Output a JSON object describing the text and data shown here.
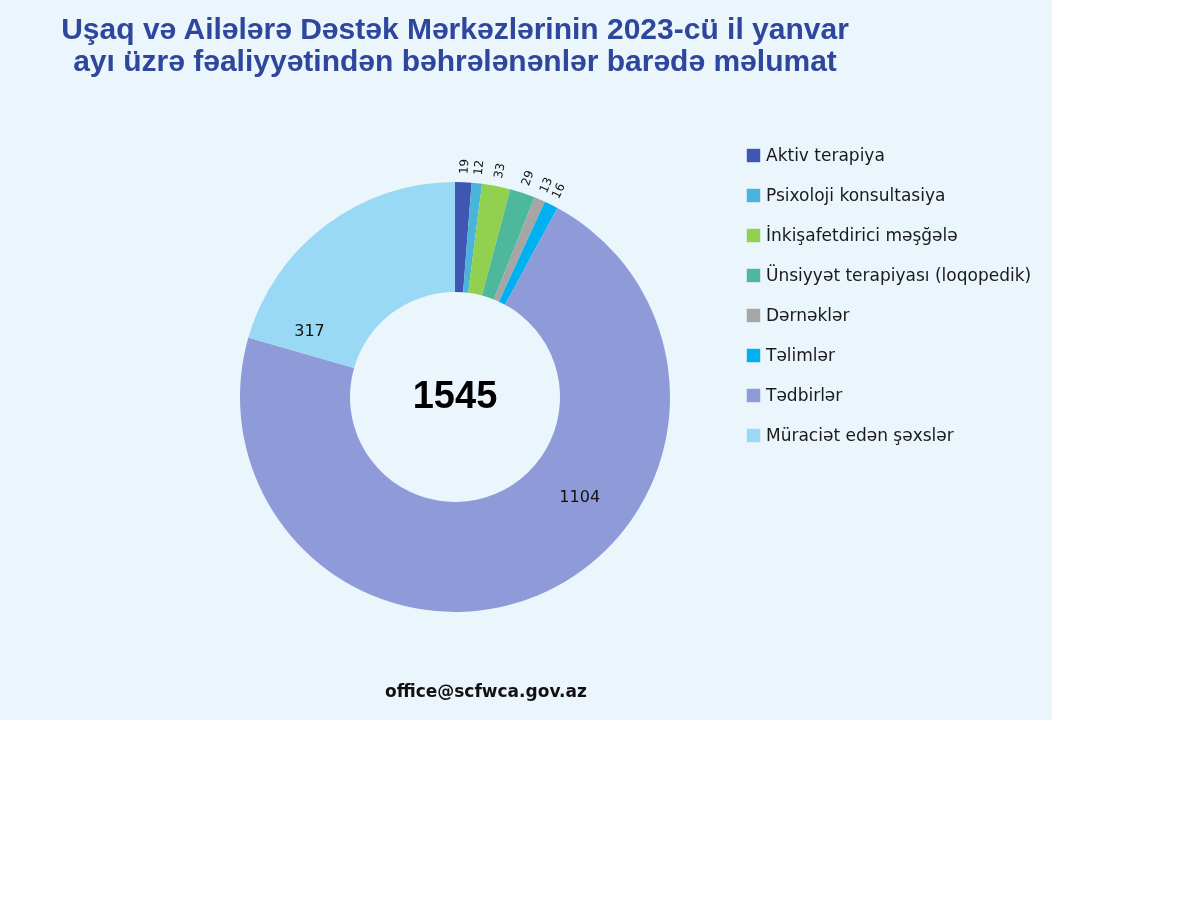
{
  "chart_data": {
    "type": "donut",
    "title": "Uşaq və Ailələrə Dəstək Mərkəzlərinin 2023-cü il yanvar ayı üzrə fəaliyyətindən bəhrələnənlər barədə məlumat",
    "categories": [
      "Aktiv terapiya",
      "Psixoloji konsultasiya",
      "İnkişafetdirici məşğələ",
      "Ünsiyyət terapiyası (loqopedik)",
      "Dərnəklər",
      "Təlimlər",
      "Tədbirlər",
      "Müraciət edən şəxslər"
    ],
    "values": [
      19,
      12,
      33,
      29,
      13,
      16,
      1104,
      317
    ],
    "colors": [
      "#3f57b3",
      "#4bb4da",
      "#92d050",
      "#4db89c",
      "#a6a6a6",
      "#00b0f0",
      "#8e9bd8",
      "#99d9f5"
    ],
    "data_labels": true,
    "legend": "right",
    "annotations": [
      "1545",
      "office@scfwca.gov.az"
    ]
  }
}
